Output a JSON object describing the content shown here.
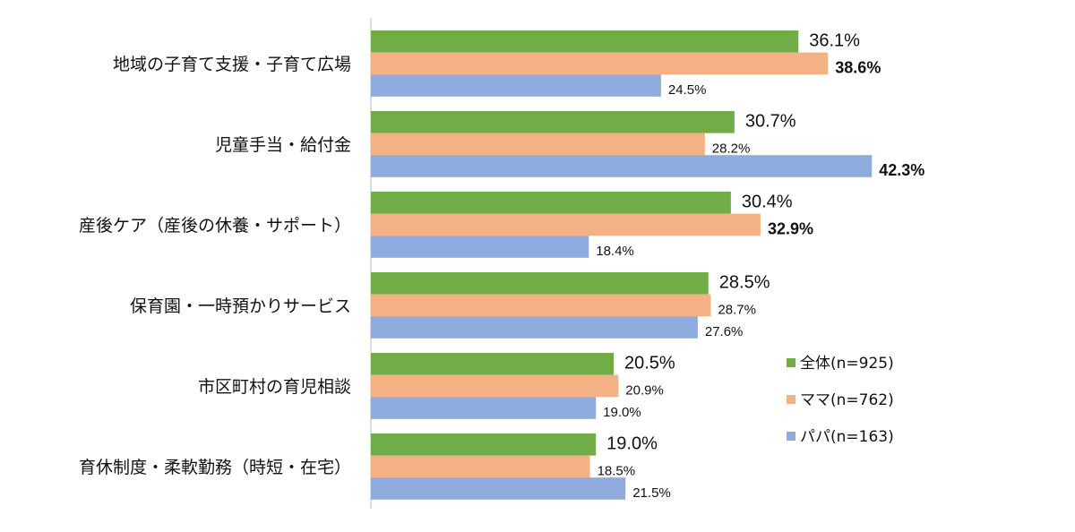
{
  "chart_data": {
    "type": "bar",
    "orientation": "horizontal",
    "categories": [
      "地域の子育て支援・子育て広場",
      "児童手当・給付金",
      "産後ケア（産後の休養・サポート）",
      "保育園・一時預かりサービス",
      "市区町村の育児相談",
      "育休制度・柔軟勤務（時短・在宅）"
    ],
    "series": [
      {
        "name": "全体(n=925)",
        "color": "#70ad47",
        "values": [
          36.1,
          30.7,
          30.4,
          28.5,
          20.5,
          19.0
        ],
        "labels": [
          "36.1%",
          "30.7%",
          "30.4%",
          "28.5%",
          "20.5%",
          "19.0%"
        ]
      },
      {
        "name": "ママ(n=762)",
        "color": "#f4b183",
        "values": [
          38.6,
          28.2,
          32.9,
          28.7,
          20.9,
          18.5
        ],
        "labels": [
          "38.6%",
          "28.2%",
          "32.9%",
          "28.7%",
          "20.9%",
          "18.5%"
        ]
      },
      {
        "name": "パパ(n=163)",
        "color": "#8faadc",
        "values": [
          24.5,
          42.3,
          18.4,
          27.6,
          19.0,
          21.5
        ],
        "labels": [
          "24.5%",
          "42.3%",
          "18.4%",
          "27.6%",
          "19.0%",
          "21.5%"
        ]
      }
    ],
    "highlights": [
      {
        "series": 1,
        "category": 0,
        "style": "red-bold",
        "color": "#ff0000"
      },
      {
        "series": 2,
        "category": 1,
        "style": "red-bold",
        "color": "#ff0000"
      },
      {
        "series": 1,
        "category": 2,
        "style": "bold"
      }
    ],
    "xlim": [
      0,
      45
    ],
    "grid": false,
    "legend_position": "right"
  }
}
